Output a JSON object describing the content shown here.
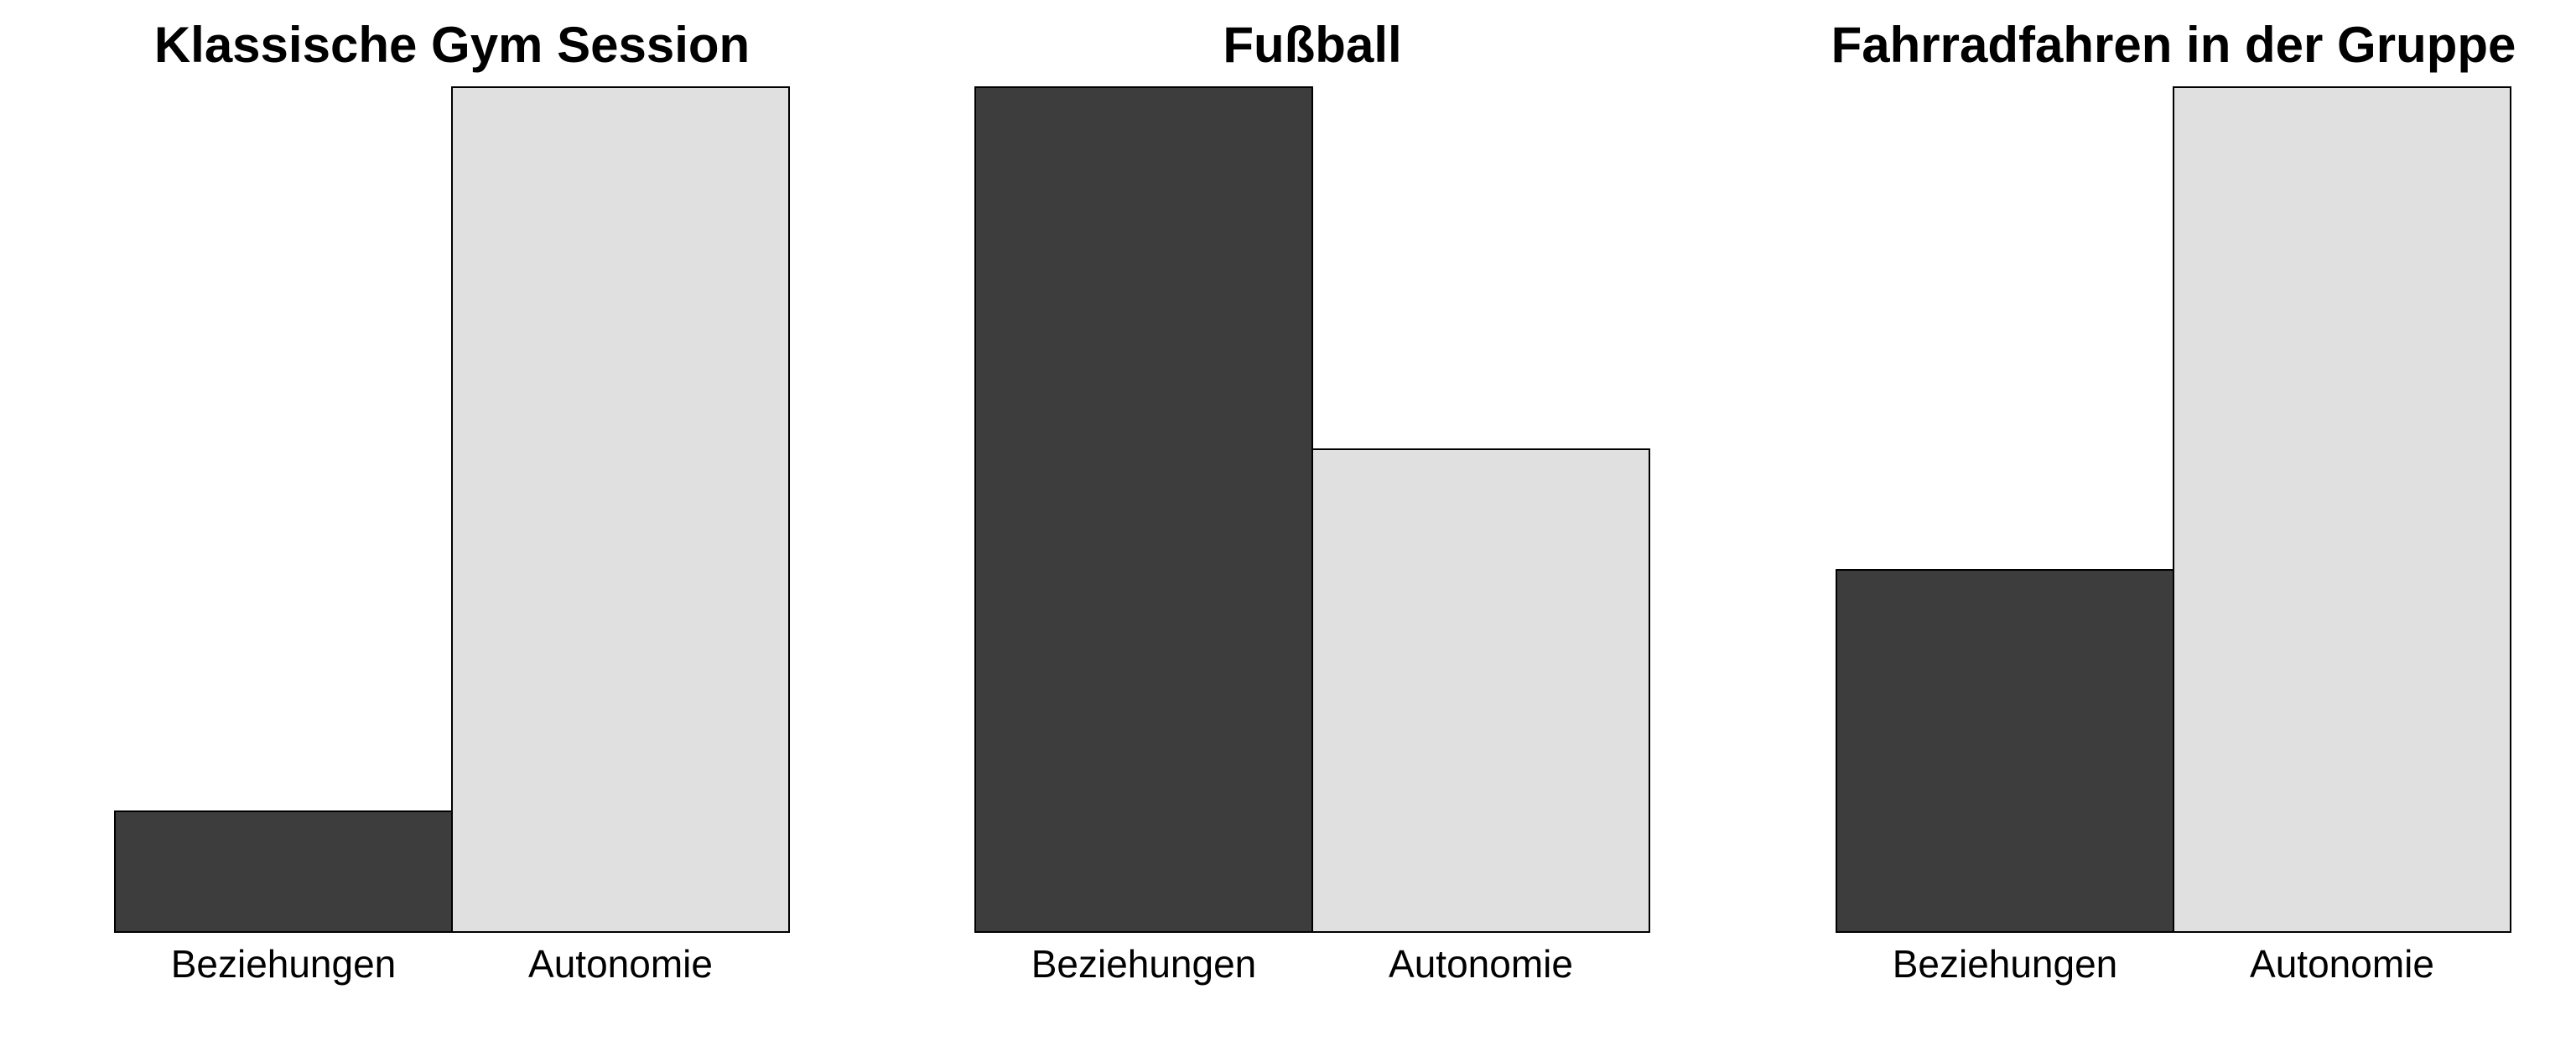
{
  "chart_data": [
    {
      "type": "bar",
      "title": "Klassische Gym Session",
      "categories": [
        "Beziehungen",
        "Autonomie"
      ],
      "values": [
        1,
        7
      ],
      "ylim": [
        0,
        7
      ],
      "grid": false,
      "show_y_axis": false,
      "bar_colors": [
        "#3d3d3d",
        "#e0e0e0"
      ]
    },
    {
      "type": "bar",
      "title": "Fußball",
      "categories": [
        "Beziehungen",
        "Autonomie"
      ],
      "values": [
        7,
        4
      ],
      "ylim": [
        0,
        7
      ],
      "grid": false,
      "show_y_axis": false,
      "bar_colors": [
        "#3d3d3d",
        "#e0e0e0"
      ]
    },
    {
      "type": "bar",
      "title": "Fahrradfahren in der Gruppe",
      "categories": [
        "Beziehungen",
        "Autonomie"
      ],
      "values": [
        3,
        7
      ],
      "ylim": [
        0,
        7
      ],
      "grid": false,
      "show_y_axis": false,
      "bar_colors": [
        "#3d3d3d",
        "#e0e0e0"
      ]
    }
  ]
}
